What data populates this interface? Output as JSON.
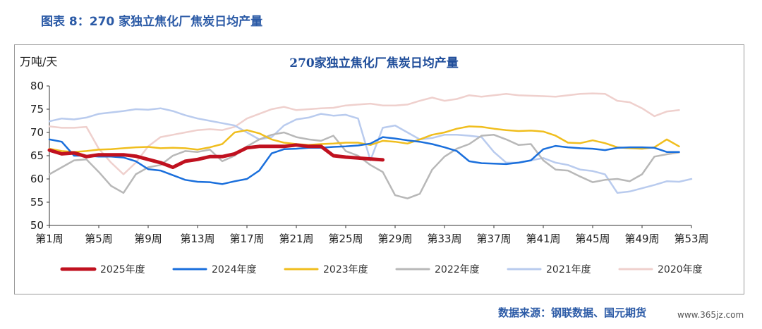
{
  "figure_caption": "图表 8：270 家独立焦化厂焦炭日均产量",
  "source": "数据来源：钢联数据、国元期货",
  "watermark": "www.365jz.com",
  "chart_data": {
    "type": "line",
    "title": "270家独立焦化厂焦炭日均产量",
    "ylabel": "万吨/天",
    "xlabel": "",
    "ylim": [
      50,
      80
    ],
    "yticks": [
      50,
      55,
      60,
      65,
      70,
      75,
      80
    ],
    "xlim": [
      1,
      53
    ],
    "xtick_values": [
      1,
      5,
      9,
      13,
      17,
      21,
      25,
      29,
      33,
      37,
      41,
      45,
      49,
      53
    ],
    "xtick_labels": [
      "第1周",
      "第5周",
      "第9周",
      "第13周",
      "第17周",
      "第21周",
      "第25周",
      "第29周",
      "第33周",
      "第37周",
      "第41周",
      "第45周",
      "第49周",
      "第53周"
    ],
    "grid": false,
    "legend_position": "bottom",
    "series": [
      {
        "name": "2025年度",
        "color": "#c0111f",
        "width": 5,
        "x": [
          1,
          2,
          3,
          4,
          5,
          6,
          7,
          8,
          9,
          10,
          11,
          12,
          13,
          14,
          15,
          16,
          17,
          18,
          19,
          20,
          21,
          22,
          23,
          24,
          25,
          26,
          27,
          28
        ],
        "values": [
          66.2,
          65.4,
          65.6,
          64.8,
          65.2,
          65.2,
          65.2,
          64.9,
          64.2,
          63.5,
          62.5,
          63.8,
          64.2,
          64.8,
          64.8,
          65.4,
          66.7,
          67.0,
          67.0,
          67.0,
          67.3,
          67.0,
          67.0,
          65.0,
          64.7,
          64.5,
          64.3,
          64.1
        ]
      },
      {
        "name": "2024年度",
        "color": "#1a6fdc",
        "width": 2.5,
        "x": [
          1,
          2,
          3,
          4,
          5,
          6,
          7,
          8,
          9,
          10,
          11,
          12,
          13,
          14,
          15,
          16,
          17,
          18,
          19,
          20,
          21,
          22,
          23,
          24,
          25,
          26,
          27,
          28,
          29,
          30,
          31,
          32,
          33,
          34,
          35,
          36,
          37,
          38,
          39,
          40,
          41,
          42,
          43,
          44,
          45,
          46,
          47,
          48,
          49,
          50,
          51,
          52
        ],
        "values": [
          68.5,
          68.0,
          65.0,
          65.0,
          64.8,
          64.8,
          64.6,
          63.8,
          62.1,
          61.8,
          60.8,
          59.8,
          59.4,
          59.3,
          58.9,
          59.5,
          60.0,
          61.8,
          65.5,
          66.4,
          66.5,
          66.7,
          66.7,
          66.9,
          67.0,
          67.2,
          67.6,
          69.0,
          68.7,
          68.3,
          68.0,
          67.5,
          66.8,
          66.0,
          63.8,
          63.4,
          63.3,
          63.2,
          63.5,
          64.0,
          66.4,
          67.1,
          66.8,
          66.6,
          66.5,
          66.2,
          66.7,
          66.8,
          66.8,
          66.7,
          65.8,
          65.8
        ]
      },
      {
        "name": "2023年度",
        "color": "#f0be1e",
        "width": 2.5,
        "x": [
          1,
          2,
          3,
          4,
          5,
          6,
          7,
          8,
          9,
          10,
          11,
          12,
          13,
          14,
          15,
          16,
          17,
          18,
          19,
          20,
          21,
          22,
          23,
          24,
          25,
          26,
          27,
          28,
          29,
          30,
          31,
          32,
          33,
          34,
          35,
          36,
          37,
          38,
          39,
          40,
          41,
          42,
          43,
          44,
          45,
          46,
          47,
          48,
          49,
          50,
          51,
          52
        ],
        "values": [
          66.5,
          66.0,
          65.8,
          66.0,
          66.3,
          66.4,
          66.6,
          66.8,
          66.9,
          66.6,
          66.7,
          66.6,
          66.3,
          66.8,
          67.5,
          70.0,
          70.5,
          69.8,
          68.5,
          67.8,
          67.5,
          67.3,
          67.5,
          67.6,
          67.8,
          67.8,
          67.3,
          68.2,
          68.0,
          67.6,
          68.5,
          69.5,
          70.0,
          70.8,
          71.3,
          71.2,
          70.8,
          70.5,
          70.3,
          70.4,
          70.2,
          69.3,
          67.8,
          67.7,
          68.3,
          67.7,
          66.8,
          66.6,
          66.5,
          66.8,
          68.5,
          67.0
        ]
      },
      {
        "name": "2022年度",
        "color": "#b8b8b8",
        "width": 2.5,
        "x": [
          1,
          2,
          3,
          4,
          5,
          6,
          7,
          8,
          9,
          10,
          11,
          12,
          13,
          14,
          15,
          16,
          17,
          18,
          19,
          20,
          21,
          22,
          23,
          24,
          25,
          26,
          27,
          28,
          29,
          30,
          31,
          32,
          33,
          34,
          35,
          36,
          37,
          38,
          39,
          40,
          41,
          42,
          43,
          44,
          45,
          46,
          47,
          48,
          49,
          50,
          51,
          52
        ],
        "values": [
          61.0,
          62.5,
          64.0,
          64.2,
          61.5,
          58.5,
          57.0,
          61.0,
          62.5,
          63.0,
          65.0,
          66.0,
          65.8,
          66.3,
          63.8,
          65.0,
          67.0,
          68.5,
          69.5,
          70.0,
          69.0,
          68.5,
          68.2,
          69.3,
          66.0,
          65.0,
          63.0,
          61.5,
          56.5,
          55.8,
          56.8,
          62.0,
          64.8,
          66.5,
          67.5,
          69.3,
          69.5,
          68.5,
          67.3,
          67.5,
          64.0,
          62.0,
          61.8,
          60.5,
          59.3,
          59.8,
          60.0,
          59.5,
          61.0,
          64.8,
          65.3,
          65.7
        ]
      },
      {
        "name": "2021年度",
        "color": "#b9cbee",
        "width": 2.5,
        "x": [
          1,
          2,
          3,
          4,
          5,
          6,
          7,
          8,
          9,
          10,
          11,
          12,
          13,
          14,
          15,
          16,
          17,
          18,
          19,
          20,
          21,
          22,
          23,
          24,
          25,
          26,
          27,
          28,
          29,
          30,
          31,
          32,
          33,
          34,
          35,
          36,
          37,
          38,
          39,
          40,
          41,
          42,
          43,
          44,
          45,
          46,
          47,
          48,
          49,
          50,
          51,
          52,
          53
        ],
        "values": [
          72.4,
          73.0,
          72.8,
          73.2,
          74.0,
          74.3,
          74.6,
          75.0,
          74.9,
          75.2,
          74.6,
          73.7,
          73.0,
          72.5,
          72.0,
          71.5,
          70.0,
          68.5,
          69.0,
          71.5,
          72.8,
          73.2,
          74.0,
          73.6,
          73.8,
          73.0,
          64.0,
          71.0,
          71.5,
          70.0,
          68.5,
          68.8,
          69.5,
          69.5,
          69.3,
          69.0,
          65.8,
          63.5,
          63.5,
          64.0,
          64.5,
          63.5,
          63.0,
          62.0,
          61.7,
          61.0,
          57.0,
          57.3,
          58.0,
          58.7,
          59.5,
          59.4,
          60.0
        ]
      },
      {
        "name": "2020年度",
        "color": "#efd0cd",
        "width": 2.5,
        "x": [
          1,
          2,
          3,
          4,
          5,
          6,
          7,
          8,
          9,
          10,
          11,
          12,
          13,
          14,
          15,
          16,
          17,
          18,
          19,
          20,
          21,
          22,
          23,
          24,
          25,
          26,
          27,
          28,
          29,
          30,
          31,
          32,
          33,
          34,
          35,
          36,
          37,
          38,
          39,
          40,
          41,
          42,
          43,
          44,
          45,
          46,
          47,
          48,
          49,
          50,
          51,
          52
        ],
        "values": [
          71.3,
          71.0,
          71.0,
          71.2,
          66.5,
          63.5,
          61.0,
          63.5,
          67.0,
          69.0,
          69.5,
          70.0,
          70.5,
          70.7,
          70.5,
          71.2,
          73.0,
          74.0,
          75.0,
          75.5,
          74.8,
          75.0,
          75.2,
          75.3,
          75.8,
          76.0,
          76.2,
          75.8,
          75.8,
          76.0,
          76.8,
          77.5,
          76.8,
          77.2,
          78.0,
          77.7,
          78.0,
          78.3,
          78.0,
          77.9,
          77.8,
          77.7,
          78.0,
          78.3,
          78.4,
          78.3,
          76.8,
          76.5,
          75.2,
          73.5,
          74.5,
          74.8
        ]
      }
    ]
  }
}
